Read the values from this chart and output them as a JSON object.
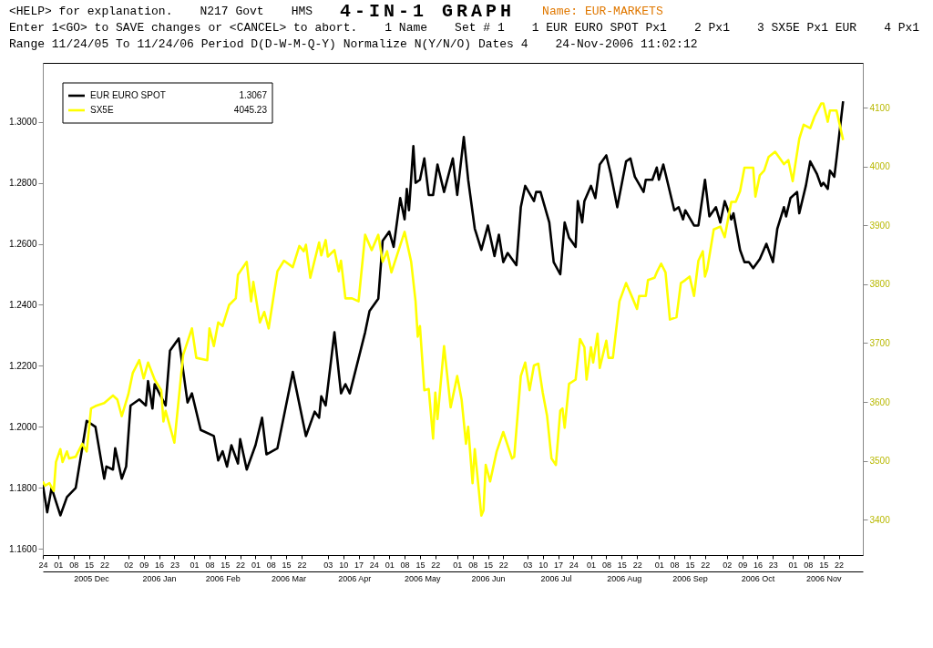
{
  "chart_data": {
    "type": "line",
    "title": "4-IN-1 GRAPH",
    "subtitle": "Name: EUR-MARKETS",
    "annotations": [
      "<HELP> for explanation.",
      "N217 Govt",
      "HMS",
      "Enter 1<GO> to SAVE changes or <CANCEL> to abort.",
      "1 Name",
      "Set # 1",
      "1 EUR EURO SPOT Px1",
      "2 Px1",
      "3 SX5E Px1 EUR",
      "4 Px1",
      "Range 11/24/05 To 11/24/06 Period D(D-W-M-Q-Y) Normalize N(Y/N/O) Dates 4",
      "24-Nov-2006 11:02:12",
      "1.3067",
      "4045.23"
    ],
    "legend": "top left",
    "xlim": [
      "2005-11-24",
      "2006-12-03"
    ],
    "xticks": [
      {
        "value": "2005-11-24",
        "label": "24"
      },
      {
        "value": "2005-12-01",
        "label": "01"
      },
      {
        "value": "2005-12-08",
        "label": "08"
      },
      {
        "value": "2005-12-15",
        "label": "15"
      },
      {
        "value": "2005-12-22",
        "label": "22"
      },
      {
        "value": "2006-01-02",
        "label": "02"
      },
      {
        "value": "2006-01-09",
        "label": "09"
      },
      {
        "value": "2006-01-16",
        "label": "16"
      },
      {
        "value": "2006-01-23",
        "label": "23"
      },
      {
        "value": "2006-02-01",
        "label": "01"
      },
      {
        "value": "2006-02-08",
        "label": "08"
      },
      {
        "value": "2006-02-15",
        "label": "15"
      },
      {
        "value": "2006-02-22",
        "label": "22"
      },
      {
        "value": "2006-03-01",
        "label": "01"
      },
      {
        "value": "2006-03-08",
        "label": "08"
      },
      {
        "value": "2006-03-15",
        "label": "15"
      },
      {
        "value": "2006-03-22",
        "label": "22"
      },
      {
        "value": "2006-04-03",
        "label": "03"
      },
      {
        "value": "2006-04-10",
        "label": "10"
      },
      {
        "value": "2006-04-17",
        "label": "17"
      },
      {
        "value": "2006-04-24",
        "label": "24"
      },
      {
        "value": "2006-05-01",
        "label": "01"
      },
      {
        "value": "2006-05-08",
        "label": "08"
      },
      {
        "value": "2006-05-15",
        "label": "15"
      },
      {
        "value": "2006-05-22",
        "label": "22"
      },
      {
        "value": "2006-06-01",
        "label": "01"
      },
      {
        "value": "2006-06-08",
        "label": "08"
      },
      {
        "value": "2006-06-15",
        "label": "15"
      },
      {
        "value": "2006-06-22",
        "label": "22"
      },
      {
        "value": "2006-07-03",
        "label": "03"
      },
      {
        "value": "2006-07-10",
        "label": "10"
      },
      {
        "value": "2006-07-17",
        "label": "17"
      },
      {
        "value": "2006-07-24",
        "label": "24"
      },
      {
        "value": "2006-08-01",
        "label": "01"
      },
      {
        "value": "2006-08-08",
        "label": "08"
      },
      {
        "value": "2006-08-15",
        "label": "15"
      },
      {
        "value": "2006-08-22",
        "label": "22"
      },
      {
        "value": "2006-09-01",
        "label": "01"
      },
      {
        "value": "2006-09-08",
        "label": "08"
      },
      {
        "value": "2006-09-15",
        "label": "15"
      },
      {
        "value": "2006-09-22",
        "label": "22"
      },
      {
        "value": "2006-10-02",
        "label": "02"
      },
      {
        "value": "2006-10-09",
        "label": "09"
      },
      {
        "value": "2006-10-16",
        "label": "16"
      },
      {
        "value": "2006-10-23",
        "label": "23"
      },
      {
        "value": "2006-11-01",
        "label": "01"
      },
      {
        "value": "2006-11-08",
        "label": "08"
      },
      {
        "value": "2006-11-15",
        "label": "15"
      },
      {
        "value": "2006-11-22",
        "label": "22"
      }
    ],
    "x2lim": [
      "2005-11-24",
      "2006-12-03"
    ],
    "x2ticks": [
      {
        "value": "2005-12-16",
        "label": "2005 Dec"
      },
      {
        "value": "2006-01-16",
        "label": "2006 Jan"
      },
      {
        "value": "2006-02-14",
        "label": "2006 Feb"
      },
      {
        "value": "2006-03-16",
        "label": "2006 Mar"
      },
      {
        "value": "2006-04-15",
        "label": "2006 Apr"
      },
      {
        "value": "2006-05-16",
        "label": "2006 May"
      },
      {
        "value": "2006-06-15",
        "label": "2006 Jun"
      },
      {
        "value": "2006-07-16",
        "label": "2006 Jul"
      },
      {
        "value": "2006-08-16",
        "label": "2006 Aug"
      },
      {
        "value": "2006-09-15",
        "label": "2006 Sep"
      },
      {
        "value": "2006-10-16",
        "label": "2006 Oct"
      },
      {
        "value": "2006-11-15",
        "label": "2006 Nov"
      }
    ],
    "ylim": [
      1.158,
      1.3193
    ],
    "yticks": [
      {
        "value": 1.16,
        "label": "1.1600"
      },
      {
        "value": 1.18,
        "label": "1.1800"
      },
      {
        "value": 1.2,
        "label": "1.2000"
      },
      {
        "value": 1.22,
        "label": "1.2200"
      },
      {
        "value": 1.24,
        "label": "1.2400"
      },
      {
        "value": 1.26,
        "label": "1.2600"
      },
      {
        "value": 1.28,
        "label": "1.2800"
      },
      {
        "value": 1.3,
        "label": "1.3000"
      }
    ],
    "y2lim": [
      3340,
      4176
    ],
    "y2ticks": [
      3400,
      3500,
      3600,
      3700,
      3800,
      3900,
      4000,
      4100
    ],
    "series": [
      {
        "name": "EUR EURO SPOT",
        "color": "#000000",
        "axis": "y",
        "x": [
          "2005-11-24",
          "2005-11-26",
          "2005-11-28",
          "2005-12-02",
          "2005-12-05",
          "2005-12-09",
          "2005-12-14",
          "2005-12-18",
          "2005-12-22",
          "2005-12-23",
          "2005-12-26",
          "2005-12-27",
          "2005-12-30",
          "2006-01-01",
          "2006-01-03",
          "2006-01-07",
          "2006-01-10",
          "2006-01-11",
          "2006-01-13",
          "2006-01-14",
          "2006-01-19",
          "2006-01-21",
          "2006-01-25",
          "2006-01-29",
          "2006-01-31",
          "2006-02-04",
          "2006-02-10",
          "2006-02-12",
          "2006-02-14",
          "2006-02-16",
          "2006-02-18",
          "2006-02-21",
          "2006-02-22",
          "2006-02-25",
          "2006-03-01",
          "2006-03-04",
          "2006-03-06",
          "2006-03-11",
          "2006-03-18",
          "2006-03-24",
          "2006-03-28",
          "2006-03-30",
          "2006-03-31",
          "2006-04-02",
          "2006-04-06",
          "2006-04-09",
          "2006-04-11",
          "2006-04-13",
          "2006-04-20",
          "2006-04-22",
          "2006-04-26",
          "2006-04-28",
          "2006-05-01",
          "2006-05-03",
          "2006-05-06",
          "2006-05-08",
          "2006-05-09",
          "2006-05-10",
          "2006-05-12",
          "2006-05-13",
          "2006-05-15",
          "2006-05-17",
          "2006-05-19",
          "2006-05-21",
          "2006-05-23",
          "2006-05-26",
          "2006-05-30",
          "2006-06-01",
          "2006-06-04",
          "2006-06-06",
          "2006-06-09",
          "2006-06-12",
          "2006-06-15",
          "2006-06-18",
          "2006-06-20",
          "2006-06-22",
          "2006-06-24",
          "2006-06-28",
          "2006-06-30",
          "2006-07-02",
          "2006-07-06",
          "2006-07-07",
          "2006-07-09",
          "2006-07-13",
          "2006-07-15",
          "2006-07-18",
          "2006-07-20",
          "2006-07-22",
          "2006-07-25",
          "2006-07-26",
          "2006-07-28",
          "2006-07-29",
          "2006-08-01",
          "2006-08-03",
          "2006-08-05",
          "2006-08-08",
          "2006-08-10",
          "2006-08-13",
          "2006-08-17",
          "2006-08-19",
          "2006-08-21",
          "2006-08-25",
          "2006-08-26",
          "2006-08-29",
          "2006-08-31",
          "2006-09-01",
          "2006-09-03",
          "2006-09-05",
          "2006-09-08",
          "2006-09-10",
          "2006-09-12",
          "2006-09-13",
          "2006-09-17",
          "2006-09-19",
          "2006-09-22",
          "2006-09-24",
          "2006-09-27",
          "2006-09-29",
          "2006-10-01",
          "2006-10-04",
          "2006-10-05",
          "2006-10-08",
          "2006-10-10",
          "2006-10-12",
          "2006-10-14",
          "2006-10-17",
          "2006-10-20",
          "2006-10-23",
          "2006-10-25",
          "2006-10-28",
          "2006-10-29",
          "2006-10-31",
          "2006-11-03",
          "2006-11-04",
          "2006-11-07",
          "2006-11-09",
          "2006-11-12",
          "2006-11-14",
          "2006-11-15",
          "2006-11-17",
          "2006-11-18",
          "2006-11-20",
          "2006-11-21",
          "2006-11-24"
        ],
        "values": [
          1.181,
          1.172,
          1.18,
          1.171,
          1.177,
          1.18,
          1.202,
          1.2,
          1.183,
          1.187,
          1.186,
          1.193,
          1.183,
          1.187,
          1.207,
          1.209,
          1.207,
          1.215,
          1.206,
          1.214,
          1.207,
          1.225,
          1.229,
          1.208,
          1.211,
          1.199,
          1.197,
          1.189,
          1.192,
          1.187,
          1.194,
          1.188,
          1.196,
          1.186,
          1.194,
          1.203,
          1.191,
          1.193,
          1.218,
          1.197,
          1.205,
          1.203,
          1.21,
          1.207,
          1.231,
          1.211,
          1.214,
          1.211,
          1.231,
          1.238,
          1.242,
          1.261,
          1.264,
          1.259,
          1.275,
          1.268,
          1.278,
          1.271,
          1.292,
          1.28,
          1.281,
          1.288,
          1.276,
          1.276,
          1.286,
          1.277,
          1.288,
          1.276,
          1.295,
          1.281,
          1.265,
          1.258,
          1.266,
          1.256,
          1.263,
          1.254,
          1.257,
          1.253,
          1.272,
          1.279,
          1.274,
          1.277,
          1.277,
          1.267,
          1.254,
          1.25,
          1.267,
          1.262,
          1.259,
          1.274,
          1.267,
          1.274,
          1.279,
          1.275,
          1.286,
          1.289,
          1.283,
          1.272,
          1.287,
          1.288,
          1.282,
          1.277,
          1.281,
          1.281,
          1.285,
          1.281,
          1.286,
          1.28,
          1.271,
          1.272,
          1.268,
          1.271,
          1.266,
          1.266,
          1.281,
          1.269,
          1.272,
          1.267,
          1.274,
          1.268,
          1.27,
          1.258,
          1.254,
          1.254,
          1.252,
          1.255,
          1.26,
          1.254,
          1.265,
          1.272,
          1.269,
          1.275,
          1.277,
          1.27,
          1.279,
          1.287,
          1.283,
          1.279,
          1.28,
          1.278,
          1.284,
          1.282,
          1.288,
          1.3067
        ]
      },
      {
        "name": "SX5E",
        "color": "#ffff00",
        "axis": "y2",
        "x": [
          "2005-11-24",
          "2005-11-25",
          "2005-11-27",
          "2005-11-29",
          "2005-11-30",
          "2005-12-02",
          "2005-12-03",
          "2005-12-05",
          "2005-12-06",
          "2005-12-09",
          "2005-12-12",
          "2005-12-14",
          "2005-12-16",
          "2005-12-18",
          "2005-12-22",
          "2005-12-26",
          "2005-12-28",
          "2005-12-30",
          "2006-01-02",
          "2006-01-04",
          "2006-01-07",
          "2006-01-09",
          "2006-01-11",
          "2006-01-14",
          "2006-01-17",
          "2006-01-18",
          "2006-01-19",
          "2006-01-23",
          "2006-01-27",
          "2006-01-31",
          "2006-02-02",
          "2006-02-07",
          "2006-02-08",
          "2006-02-10",
          "2006-02-12",
          "2006-02-14",
          "2006-02-17",
          "2006-02-20",
          "2006-02-21",
          "2006-02-25",
          "2006-02-27",
          "2006-02-28",
          "2006-03-03",
          "2006-03-05",
          "2006-03-07",
          "2006-03-11",
          "2006-03-14",
          "2006-03-18",
          "2006-03-21",
          "2006-03-23",
          "2006-03-24",
          "2006-03-26",
          "2006-03-30",
          "2006-03-31",
          "2006-04-02",
          "2006-04-03",
          "2006-04-06",
          "2006-04-08",
          "2006-04-09",
          "2006-04-11",
          "2006-04-14",
          "2006-04-17",
          "2006-04-20",
          "2006-04-23",
          "2006-04-26",
          "2006-04-28",
          "2006-04-30",
          "2006-05-02",
          "2006-05-08",
          "2006-05-11",
          "2006-05-13",
          "2006-05-14",
          "2006-05-15",
          "2006-05-17",
          "2006-05-19",
          "2006-05-21",
          "2006-05-22",
          "2006-05-23",
          "2006-05-26",
          "2006-05-29",
          "2006-06-01",
          "2006-06-03",
          "2006-06-05",
          "2006-06-06",
          "2006-06-08",
          "2006-06-09",
          "2006-06-12",
          "2006-06-13",
          "2006-06-14",
          "2006-06-16",
          "2006-06-19",
          "2006-06-22",
          "2006-06-26",
          "2006-06-27",
          "2006-06-30",
          "2006-07-02",
          "2006-07-04",
          "2006-07-06",
          "2006-07-08",
          "2006-07-10",
          "2006-07-12",
          "2006-07-14",
          "2006-07-16",
          "2006-07-18",
          "2006-07-19",
          "2006-07-20",
          "2006-07-22",
          "2006-07-25",
          "2006-07-27",
          "2006-07-29",
          "2006-07-30",
          "2006-08-01",
          "2006-08-02",
          "2006-08-04",
          "2006-08-05",
          "2006-08-08",
          "2006-08-09",
          "2006-08-11",
          "2006-08-14",
          "2006-08-17",
          "2006-08-20",
          "2006-08-22",
          "2006-08-23",
          "2006-08-26",
          "2006-08-27",
          "2006-08-30",
          "2006-08-31",
          "2006-09-02",
          "2006-09-04",
          "2006-09-06",
          "2006-09-09",
          "2006-09-11",
          "2006-09-13",
          "2006-09-15",
          "2006-09-17",
          "2006-09-19",
          "2006-09-21",
          "2006-09-22",
          "2006-09-23",
          "2006-09-26",
          "2006-09-29",
          "2006-10-01",
          "2006-10-04",
          "2006-10-06",
          "2006-10-08",
          "2006-10-10",
          "2006-10-14",
          "2006-10-15",
          "2006-10-17",
          "2006-10-19",
          "2006-10-21",
          "2006-10-24",
          "2006-10-28",
          "2006-10-30",
          "2006-11-01",
          "2006-11-04",
          "2006-11-06",
          "2006-11-09",
          "2006-11-11",
          "2006-11-14",
          "2006-11-15",
          "2006-11-17",
          "2006-11-18",
          "2006-11-21",
          "2006-11-24"
        ],
        "values": [
          3465,
          3458,
          3462,
          3449,
          3498,
          3520,
          3498,
          3516,
          3504,
          3507,
          3529,
          3516,
          3589,
          3593,
          3598,
          3611,
          3604,
          3576,
          3613,
          3649,
          3671,
          3640,
          3667,
          3638,
          3620,
          3567,
          3585,
          3531,
          3680,
          3725,
          3675,
          3671,
          3725,
          3695,
          3735,
          3729,
          3765,
          3776,
          3816,
          3838,
          3771,
          3804,
          3735,
          3753,
          3725,
          3822,
          3840,
          3829,
          3865,
          3856,
          3867,
          3811,
          3871,
          3849,
          3875,
          3847,
          3858,
          3822,
          3840,
          3776,
          3776,
          3771,
          3884,
          3858,
          3884,
          3838,
          3856,
          3820,
          3889,
          3838,
          3771,
          3711,
          3729,
          3620,
          3622,
          3538,
          3616,
          3571,
          3695,
          3591,
          3644,
          3604,
          3529,
          3558,
          3462,
          3520,
          3407,
          3416,
          3493,
          3465,
          3516,
          3549,
          3504,
          3507,
          3644,
          3667,
          3620,
          3662,
          3665,
          3616,
          3576,
          3504,
          3493,
          3585,
          3589,
          3556,
          3631,
          3638,
          3707,
          3693,
          3638,
          3693,
          3667,
          3716,
          3658,
          3704,
          3675,
          3675,
          3771,
          3802,
          3776,
          3758,
          3780,
          3780,
          3807,
          3811,
          3820,
          3835,
          3820,
          3740,
          3744,
          3802,
          3807,
          3813,
          3780,
          3840,
          3856,
          3813,
          3825,
          3893,
          3898,
          3880,
          3940,
          3940,
          3958,
          3998,
          3998,
          3949,
          3985,
          3993,
          4016,
          4025,
          4004,
          4011,
          3975,
          4047,
          4071,
          4065,
          4085,
          4107,
          4107,
          4076,
          4095,
          4095,
          4045
        ]
      }
    ]
  }
}
